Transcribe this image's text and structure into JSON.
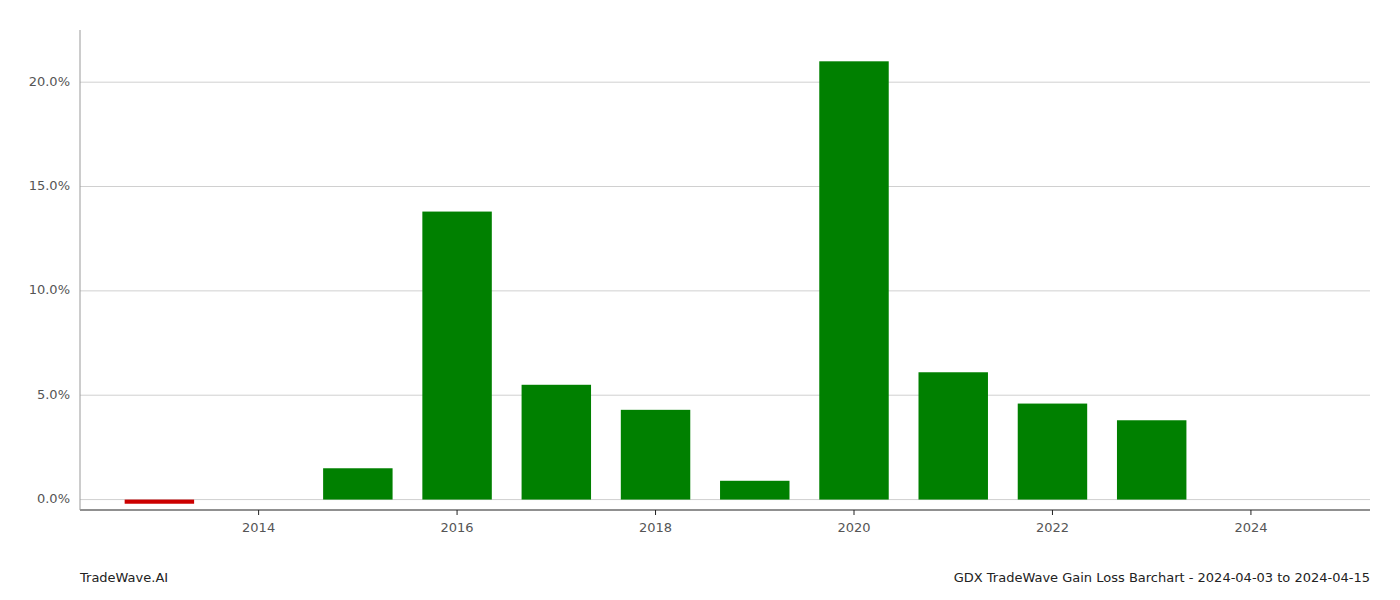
{
  "chart_data": {
    "type": "bar",
    "title": "GDX TradeWave Gain Loss Barchart - 2024-04-03 to 2024-04-15",
    "subtitle": "TradeWave.AI",
    "x": [
      2013,
      2015,
      2016,
      2017,
      2018,
      2019,
      2020,
      2021,
      2022,
      2023
    ],
    "values": [
      -0.002,
      0.015,
      0.138,
      0.055,
      0.043,
      0.009,
      0.21,
      0.061,
      0.046,
      0.038
    ],
    "colors": [
      "#cc0000",
      "#008000",
      "#008000",
      "#008000",
      "#008000",
      "#008000",
      "#008000",
      "#008000",
      "#008000",
      "#008000"
    ],
    "xlim": [
      2012.2,
      2025.2
    ],
    "xticks": [
      2014,
      2016,
      2018,
      2020,
      2022,
      2024
    ],
    "ylim": [
      -0.005,
      0.225
    ],
    "yticks": [
      {
        "value": 0.0,
        "label": "0.0%"
      },
      {
        "value": 0.05,
        "label": "5.0%"
      },
      {
        "value": 0.1,
        "label": "10.0%"
      },
      {
        "value": 0.15,
        "label": "15.0%"
      },
      {
        "value": 0.2,
        "label": "20.0%"
      }
    ],
    "grid": true
  }
}
